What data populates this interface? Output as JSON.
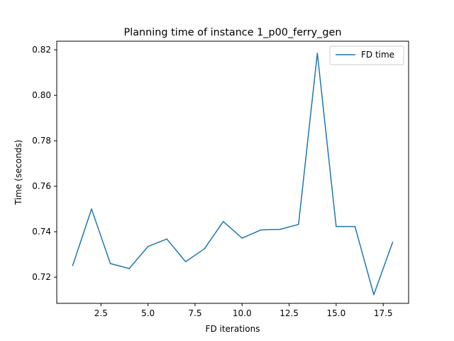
{
  "chart_data": {
    "type": "line",
    "title": "Planning time of instance 1_p00_ferry_gen",
    "xlabel": "FD iterations",
    "ylabel": "Time (seconds)",
    "xlim": [
      0.15,
      18.85
    ],
    "ylim": [
      0.7085,
      0.8238
    ],
    "x_ticks": [
      2.5,
      5.0,
      7.5,
      10.0,
      12.5,
      15.0,
      17.5
    ],
    "y_ticks": [
      0.72,
      0.74,
      0.76,
      0.78,
      0.8,
      0.82
    ],
    "x_tick_labels": [
      "2.5",
      "5.0",
      "7.5",
      "10.0",
      "12.5",
      "15.0",
      "17.5"
    ],
    "y_tick_labels": [
      "0.72",
      "0.74",
      "0.76",
      "0.78",
      "0.80",
      "0.82"
    ],
    "legend_position": "top-right",
    "grid": false,
    "series": [
      {
        "name": "FD time",
        "color": "#1f77b4",
        "x": [
          1,
          2,
          3,
          4,
          5,
          6,
          7,
          8,
          9,
          10,
          11,
          12,
          13,
          14,
          15,
          16,
          17,
          18
        ],
        "values": [
          0.7252,
          0.75,
          0.726,
          0.7238,
          0.7335,
          0.7368,
          0.7268,
          0.7325,
          0.7445,
          0.7372,
          0.7408,
          0.741,
          0.7432,
          0.8185,
          0.7423,
          0.7423,
          0.7123,
          0.7353
        ]
      }
    ]
  }
}
